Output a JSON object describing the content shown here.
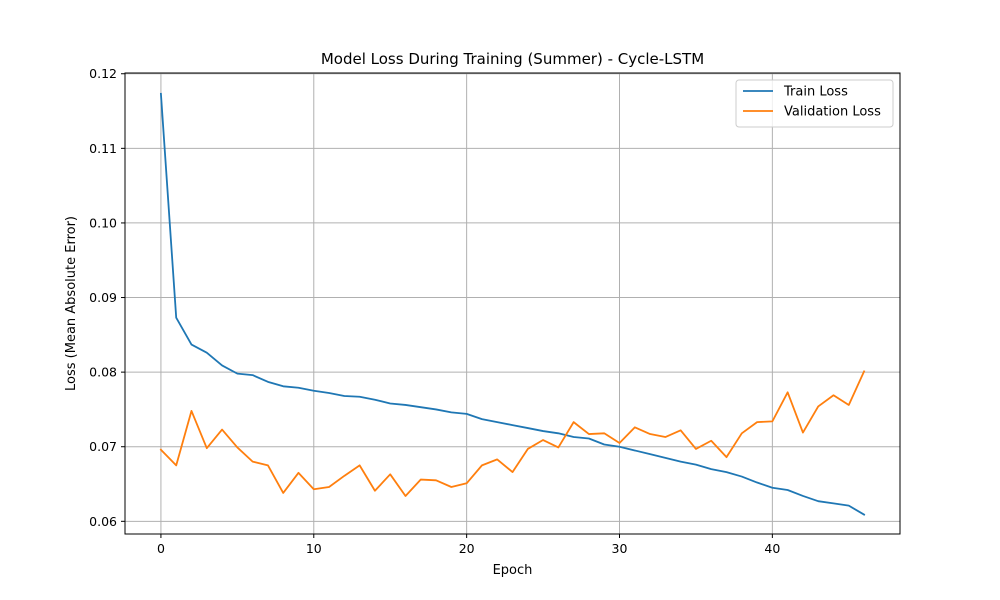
{
  "chart_data": {
    "type": "line",
    "title": "Model Loss During Training (Summer) - Cycle-LSTM",
    "xlabel": "Epoch",
    "ylabel": "Loss (Mean Absolute Error)",
    "xlim": [
      -2.35,
      48.35
    ],
    "ylim": [
      0.0583,
      0.1201
    ],
    "xticks": [
      0,
      10,
      20,
      30,
      40
    ],
    "yticks": [
      0.06,
      0.07,
      0.08,
      0.09,
      0.1,
      0.11,
      0.12
    ],
    "ytick_labels": [
      "0.06",
      "0.07",
      "0.08",
      "0.09",
      "0.10",
      "0.11",
      "0.12"
    ],
    "grid": true,
    "legend_position": "top-right",
    "x": [
      0,
      1,
      2,
      3,
      4,
      5,
      6,
      7,
      8,
      9,
      10,
      11,
      12,
      13,
      14,
      15,
      16,
      17,
      18,
      19,
      20,
      21,
      22,
      23,
      24,
      25,
      26,
      27,
      28,
      29,
      30,
      31,
      32,
      33,
      34,
      35,
      36,
      37,
      38,
      39,
      40,
      41,
      42,
      43,
      44,
      45,
      46
    ],
    "series": [
      {
        "name": "Train Loss",
        "color": "#1f77b4",
        "values": [
          0.1173,
          0.0873,
          0.0837,
          0.0826,
          0.0809,
          0.0798,
          0.0796,
          0.0787,
          0.0781,
          0.0779,
          0.0775,
          0.0772,
          0.0768,
          0.0767,
          0.0763,
          0.0758,
          0.0756,
          0.0753,
          0.075,
          0.0746,
          0.0744,
          0.0737,
          0.0733,
          0.0729,
          0.0725,
          0.0721,
          0.0718,
          0.0713,
          0.0711,
          0.0703,
          0.07,
          0.0695,
          0.069,
          0.0685,
          0.068,
          0.0676,
          0.067,
          0.0666,
          0.066,
          0.0652,
          0.0645,
          0.0642,
          0.0634,
          0.0627,
          0.0624,
          0.0621,
          0.0609
        ]
      },
      {
        "name": "Validation Loss",
        "color": "#ff7f0e",
        "values": [
          0.0696,
          0.0675,
          0.0748,
          0.0698,
          0.0723,
          0.0699,
          0.068,
          0.0675,
          0.0638,
          0.0665,
          0.0643,
          0.0646,
          0.0661,
          0.0675,
          0.0641,
          0.0663,
          0.0634,
          0.0656,
          0.0655,
          0.0646,
          0.0651,
          0.0675,
          0.0683,
          0.0666,
          0.0697,
          0.0709,
          0.0699,
          0.0733,
          0.0717,
          0.0718,
          0.0705,
          0.0726,
          0.0717,
          0.0713,
          0.0722,
          0.0697,
          0.0708,
          0.0686,
          0.0718,
          0.0733,
          0.0734,
          0.0773,
          0.0719,
          0.0754,
          0.0769,
          0.0756,
          0.0801
        ]
      }
    ]
  }
}
